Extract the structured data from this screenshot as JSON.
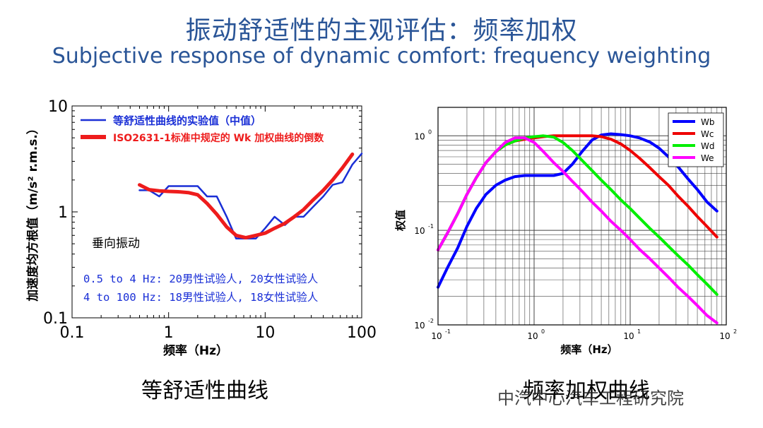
{
  "title_cn": "振动舒适性的主观评估：频率加权",
  "title_en": "Subjective response of dynamic comfort: frequency weighting",
  "captions": {
    "left": "等舒适性曲线",
    "right": "频率加权曲线"
  },
  "watermark": "中汽中心汽车工程研究院",
  "colors": {
    "title": "#2a5597",
    "left_exp": "#1a2fd6",
    "left_iso": "#ee1c1c",
    "Wb": "#0000ff",
    "Wc": "#ee0000",
    "Wd": "#00ee00",
    "We": "#ff00ff"
  },
  "chart_data": [
    {
      "type": "line",
      "xscale": "log",
      "yscale": "log",
      "xlim": [
        0.1,
        100
      ],
      "ylim": [
        0.1,
        10
      ],
      "xlabel": "频率（Hz）",
      "ylabel": "加速度均方根值（m/s² r.m.s.）",
      "xticks": [
        "0.1",
        "1",
        "10",
        "100"
      ],
      "yticks": [
        "0.1",
        "1",
        "10"
      ],
      "grid": false,
      "legend": "top",
      "annotations": {
        "direction": "垂向振动",
        "line1": "0.5 to 4 Hz: 20男性试验人, 20女性试验人",
        "line2": "4 to 100 Hz: 18男性试验人, 18女性试验人"
      },
      "series": [
        {
          "name": "等舒适性曲线的实验值（中值）",
          "x": [
            0.5,
            0.63,
            0.8,
            1.0,
            1.25,
            1.6,
            2.0,
            2.5,
            3.15,
            4.0,
            5.0,
            6.3,
            8.0,
            10,
            12.5,
            16,
            20,
            25,
            31.5,
            40,
            50,
            63,
            80,
            100
          ],
          "y": [
            1.6,
            1.6,
            1.4,
            1.75,
            1.75,
            1.75,
            1.75,
            1.4,
            1.4,
            0.9,
            0.56,
            0.56,
            0.56,
            0.7,
            0.9,
            0.75,
            0.9,
            0.9,
            1.12,
            1.4,
            1.8,
            1.9,
            2.8,
            3.55
          ]
        },
        {
          "name": "ISO2631-1标准中规定的 Wk 加权曲线的倒数",
          "x": [
            0.5,
            0.63,
            0.8,
            1.0,
            1.25,
            1.6,
            2.0,
            2.5,
            3.15,
            4.0,
            5.0,
            6.3,
            8.0,
            10,
            12.5,
            16,
            20,
            25,
            31.5,
            40,
            50,
            63,
            80
          ],
          "y": [
            1.8,
            1.62,
            1.58,
            1.56,
            1.55,
            1.52,
            1.45,
            1.2,
            0.95,
            0.72,
            0.6,
            0.57,
            0.6,
            0.63,
            0.7,
            0.78,
            0.9,
            1.05,
            1.3,
            1.6,
            2.0,
            2.6,
            3.5
          ]
        }
      ]
    },
    {
      "type": "line",
      "xscale": "log",
      "yscale": "log",
      "xlim": [
        0.1,
        100
      ],
      "ylim": [
        0.01,
        2
      ],
      "xlabel": "频率（Hz）",
      "ylabel": "权值",
      "xticks": [
        {
          "base": "10",
          "exp": "-1"
        },
        {
          "base": "10",
          "exp": "0"
        },
        {
          "base": "10",
          "exp": "1"
        },
        {
          "base": "10",
          "exp": "2"
        }
      ],
      "yticks": [
        {
          "base": "10",
          "exp": "-2"
        },
        {
          "base": "10",
          "exp": "-1"
        },
        {
          "base": "10",
          "exp": "0"
        }
      ],
      "grid": true,
      "legend": "top-right",
      "series": [
        {
          "name": "Wb",
          "x": [
            0.1,
            0.125,
            0.16,
            0.2,
            0.25,
            0.315,
            0.4,
            0.5,
            0.63,
            0.8,
            1.0,
            1.25,
            1.6,
            2.0,
            2.5,
            3.15,
            4.0,
            5.0,
            6.3,
            8.0,
            10,
            12.5,
            16,
            20,
            25,
            31.5,
            40,
            50,
            63,
            80
          ],
          "y": [
            0.025,
            0.04,
            0.065,
            0.11,
            0.17,
            0.24,
            0.3,
            0.34,
            0.37,
            0.38,
            0.38,
            0.38,
            0.38,
            0.4,
            0.5,
            0.68,
            0.9,
            1.02,
            1.05,
            1.03,
            1.0,
            0.95,
            0.86,
            0.74,
            0.6,
            0.47,
            0.35,
            0.27,
            0.2,
            0.16
          ]
        },
        {
          "name": "Wc",
          "x": [
            0.1,
            0.125,
            0.16,
            0.2,
            0.25,
            0.315,
            0.4,
            0.5,
            0.63,
            0.8,
            1.0,
            1.25,
            1.6,
            2.0,
            2.5,
            3.15,
            4.0,
            5.0,
            6.3,
            8.0,
            10,
            12.5,
            16,
            20,
            25,
            31.5,
            40,
            50,
            63,
            80
          ],
          "y": [
            0.062,
            0.093,
            0.15,
            0.24,
            0.36,
            0.52,
            0.68,
            0.8,
            0.88,
            0.92,
            0.95,
            0.98,
            1.0,
            1.0,
            1.0,
            1.0,
            1.0,
            0.98,
            0.92,
            0.82,
            0.7,
            0.58,
            0.46,
            0.37,
            0.3,
            0.23,
            0.18,
            0.14,
            0.11,
            0.085
          ]
        },
        {
          "name": "Wd",
          "x": [
            0.1,
            0.125,
            0.16,
            0.2,
            0.25,
            0.315,
            0.4,
            0.5,
            0.63,
            0.8,
            1.0,
            1.25,
            1.6,
            2.0,
            2.5,
            3.15,
            4.0,
            5.0,
            6.3,
            8.0,
            10,
            12.5,
            16,
            20,
            25,
            31.5,
            40,
            50,
            63,
            80
          ],
          "y": [
            0.062,
            0.093,
            0.15,
            0.24,
            0.36,
            0.52,
            0.68,
            0.8,
            0.88,
            0.95,
            0.98,
            1.0,
            0.97,
            0.85,
            0.7,
            0.55,
            0.43,
            0.34,
            0.27,
            0.21,
            0.17,
            0.135,
            0.105,
            0.085,
            0.068,
            0.054,
            0.043,
            0.034,
            0.027,
            0.021
          ]
        },
        {
          "name": "We",
          "x": [
            0.1,
            0.125,
            0.16,
            0.2,
            0.25,
            0.315,
            0.4,
            0.5,
            0.63,
            0.8,
            1.0,
            1.25,
            1.6,
            2.0,
            2.5,
            3.15,
            4.0,
            5.0,
            6.3,
            8.0,
            10,
            12.5,
            16,
            20,
            25,
            31.5,
            40,
            50,
            63,
            80
          ],
          "y": [
            0.062,
            0.093,
            0.15,
            0.24,
            0.36,
            0.52,
            0.68,
            0.85,
            0.95,
            0.95,
            0.85,
            0.68,
            0.52,
            0.42,
            0.33,
            0.26,
            0.2,
            0.16,
            0.125,
            0.1,
            0.08,
            0.063,
            0.05,
            0.04,
            0.032,
            0.025,
            0.02,
            0.016,
            0.0126,
            0.0105
          ]
        }
      ]
    }
  ]
}
